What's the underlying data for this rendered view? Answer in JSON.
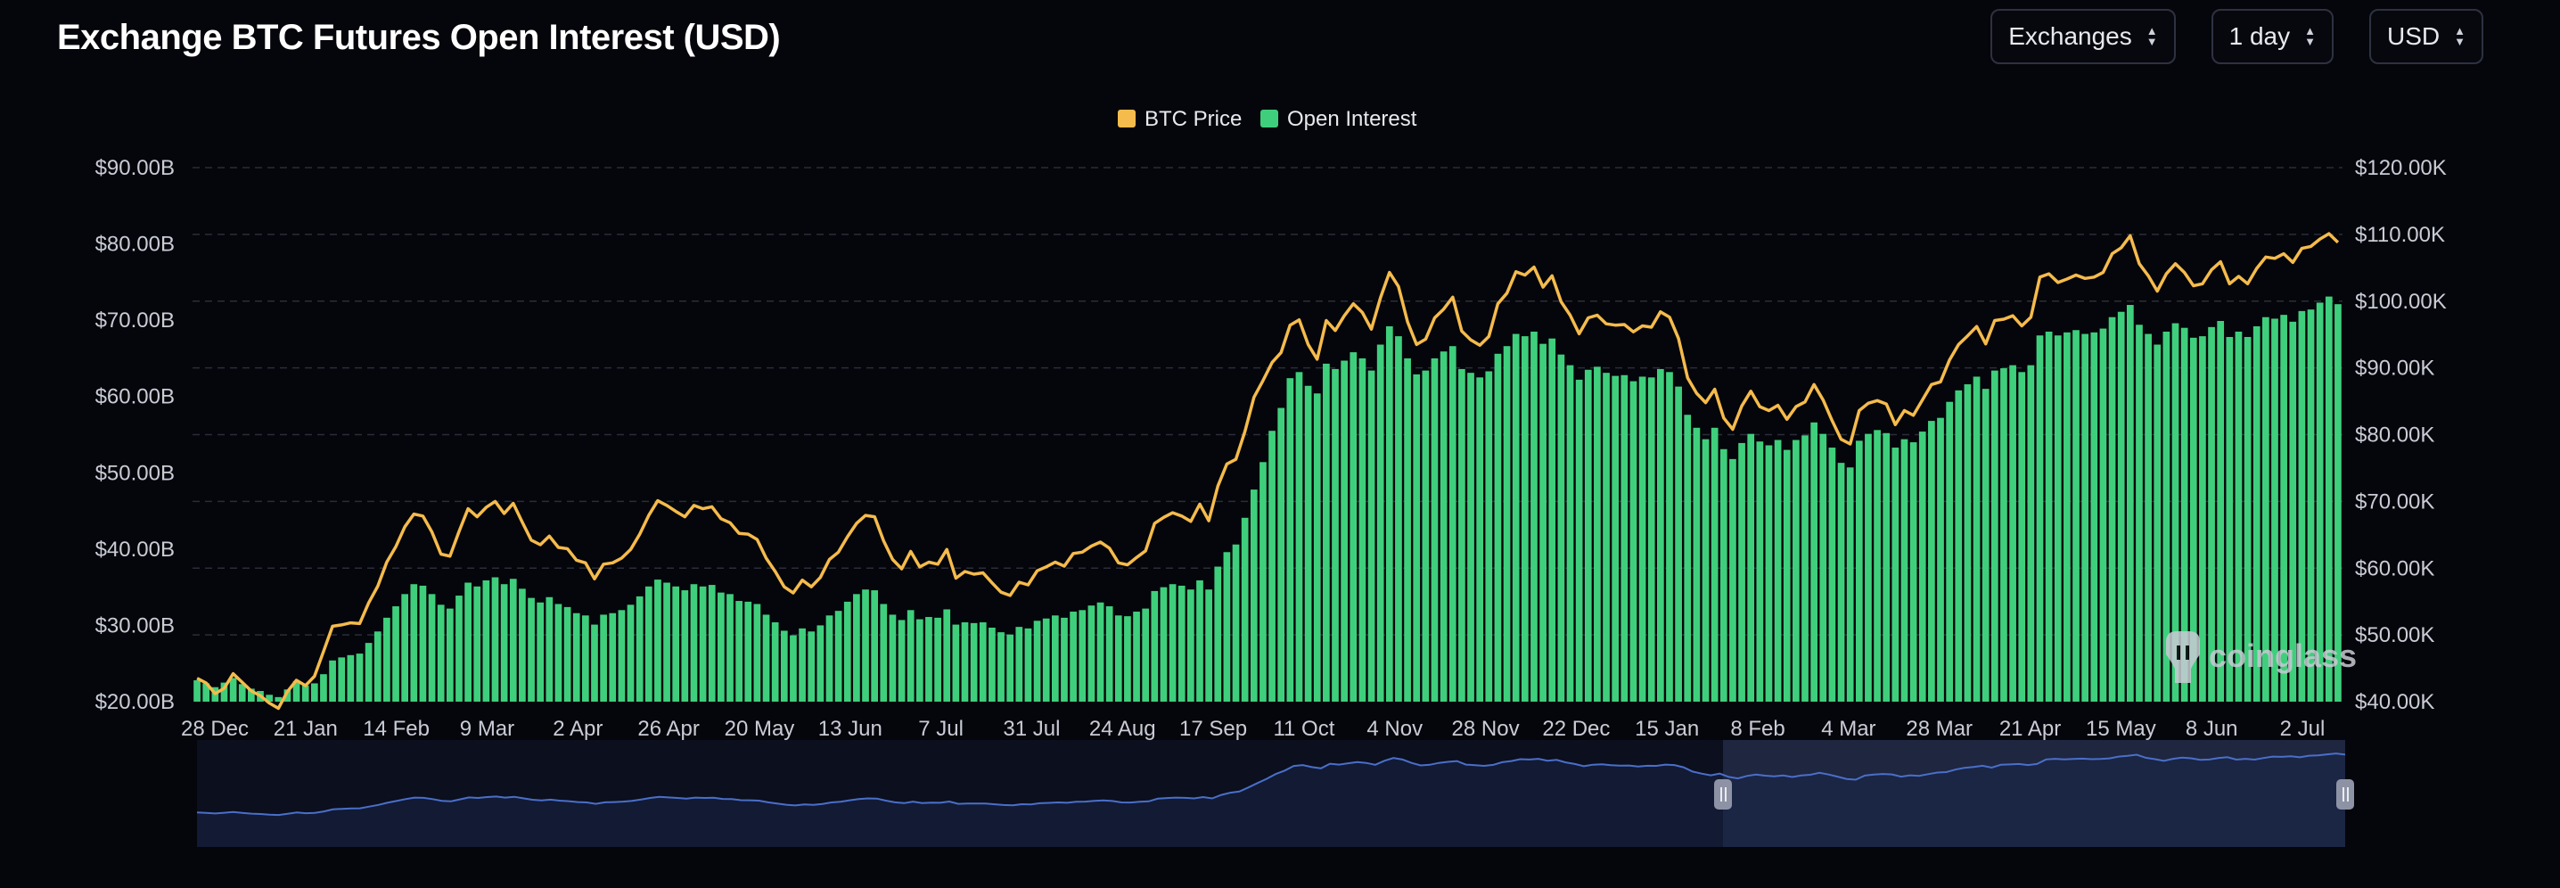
{
  "header": {
    "title": "Exchange BTC Futures Open Interest (USD)",
    "controls": [
      {
        "label": "Exchanges"
      },
      {
        "label": "1 day"
      },
      {
        "label": "USD"
      }
    ]
  },
  "watermark": "coinglass",
  "colors": {
    "price_line": "#f5bb4c",
    "oi_bars": "#3fcf7c",
    "background": "#05060b",
    "navigator_line": "#4a6fc9",
    "navigator_selected": "#1e2640"
  },
  "chart_data": {
    "type": "bar",
    "legend_position": "top-center",
    "grid": true,
    "x_tick_labels": [
      "28 Dec",
      "21 Jan",
      "14 Feb",
      "9 Mar",
      "2 Apr",
      "26 Apr",
      "20 May",
      "13 Jun",
      "7 Jul",
      "31 Jul",
      "24 Aug",
      "17 Sep",
      "11 Oct",
      "4 Nov",
      "28 Nov",
      "22 Dec",
      "15 Jan",
      "8 Feb",
      "4 Mar",
      "28 Mar",
      "21 Apr",
      "15 May",
      "8 Jun",
      "2 Jul"
    ],
    "y_left": {
      "ticks": [
        "$20.00B",
        "$30.00B",
        "$40.00B",
        "$50.00B",
        "$60.00B",
        "$70.00B",
        "$80.00B",
        "$90.00B"
      ],
      "range": [
        20,
        90
      ],
      "unit": "B USD"
    },
    "y_right": {
      "ticks": [
        "$40.00K",
        "$50.00K",
        "$60.00K",
        "$70.00K",
        "$80.00K",
        "$90.00K",
        "$100.00K",
        "$110.00K",
        "$120.00K"
      ],
      "range": [
        40,
        120
      ],
      "unit": "K USD"
    },
    "series": [
      {
        "name": "BTC Price",
        "type": "line",
        "axis": "right",
        "color": "#f5bb4c",
        "values": [
          43.5,
          42.8,
          41.2,
          42.0,
          44.2,
          42.9,
          41.6,
          40.9,
          39.8,
          39.0,
          41.5,
          43.2,
          42.4,
          43.8,
          47.5,
          51.3,
          51.5,
          51.8,
          51.7,
          54.8,
          57.3,
          60.9,
          63.2,
          66.2,
          68.1,
          67.8,
          65.4,
          62.1,
          61.8,
          65.5,
          68.9,
          67.7,
          69.1,
          70.0,
          68.2,
          69.7,
          66.9,
          64.2,
          63.5,
          64.8,
          63.1,
          62.9,
          61.2,
          60.8,
          58.4,
          60.6,
          60.8,
          61.5,
          62.8,
          65.1,
          67.9,
          70.1,
          69.4,
          68.5,
          67.7,
          69.4,
          68.9,
          69.2,
          67.4,
          66.8,
          65.2,
          65.1,
          64.3,
          61.5,
          59.5,
          57.2,
          56.3,
          58.2,
          57.2,
          58.6,
          61.3,
          62.4,
          64.7,
          66.7,
          67.9,
          67.7,
          64.1,
          61.3,
          59.9,
          62.5,
          60.2,
          60.9,
          60.6,
          62.8,
          58.5,
          59.5,
          59.1,
          59.3,
          57.8,
          56.4,
          55.9,
          57.9,
          57.5,
          59.6,
          60.2,
          60.9,
          60.3,
          62.2,
          62.4,
          63.3,
          63.9,
          63.0,
          60.8,
          60.5,
          61.6,
          62.6,
          66.7,
          67.6,
          68.3,
          67.8,
          67.0,
          69.6,
          67.1,
          72.3,
          75.6,
          76.3,
          80.5,
          85.6,
          88.1,
          90.8,
          92.3,
          96.4,
          97.2,
          93.5,
          91.3,
          97.1,
          95.6,
          97.8,
          99.6,
          98.3,
          95.8,
          100.5,
          104.3,
          102.2,
          96.9,
          93.5,
          94.3,
          97.5,
          98.8,
          100.6,
          95.5,
          94.2,
          93.4,
          94.7,
          99.6,
          101.2,
          104.4,
          103.9,
          105.1,
          102.1,
          103.8,
          99.9,
          97.9,
          95.1,
          97.5,
          97.9,
          96.6,
          96.4,
          96.5,
          95.4,
          96.3,
          96.1,
          98.4,
          97.6,
          94.4,
          88.5,
          86.2,
          84.8,
          86.8,
          82.5,
          80.8,
          84.3,
          86.5,
          84.2,
          83.6,
          84.4,
          82.3,
          84.2,
          84.9,
          87.5,
          85.2,
          82.1,
          79.3,
          78.6,
          83.6,
          84.7,
          85.1,
          84.6,
          81.5,
          83.6,
          82.9,
          85.2,
          87.5,
          87.9,
          91.2,
          93.5,
          94.8,
          96.2,
          93.6,
          97.1,
          97.3,
          97.8,
          96.3,
          97.6,
          103.6,
          104.1,
          102.8,
          103.3,
          103.9,
          103.4,
          103.6,
          104.3,
          107.1,
          108.0,
          109.8,
          105.6,
          103.8,
          101.5,
          104.1,
          105.6,
          104.3,
          102.3,
          102.6,
          104.7,
          105.9,
          102.6,
          103.7,
          102.6,
          104.9,
          106.6,
          106.4,
          107.1,
          105.8,
          107.9,
          108.2,
          109.3,
          110.1,
          108.8
        ],
        "value_format": "K USD"
      },
      {
        "name": "Open Interest",
        "type": "bar",
        "axis": "left",
        "color": "#3fcf7c",
        "values": [
          22.8,
          22.4,
          21.9,
          22.5,
          23.1,
          22.3,
          21.7,
          21.4,
          20.9,
          20.6,
          21.6,
          22.7,
          22.1,
          22.4,
          23.6,
          25.4,
          25.8,
          26.1,
          26.3,
          27.7,
          29.2,
          31.0,
          32.5,
          34.1,
          35.4,
          35.2,
          34.1,
          32.7,
          32.2,
          33.9,
          35.6,
          35.1,
          35.9,
          36.3,
          35.4,
          36.1,
          34.8,
          33.6,
          33.0,
          33.7,
          32.8,
          32.4,
          31.6,
          31.3,
          30.1,
          31.4,
          31.6,
          32.0,
          32.7,
          33.8,
          35.1,
          36.0,
          35.6,
          35.1,
          34.6,
          35.4,
          35.1,
          35.3,
          34.3,
          34.1,
          33.2,
          33.1,
          32.8,
          31.4,
          30.4,
          29.3,
          28.7,
          29.6,
          29.2,
          30.0,
          31.3,
          31.9,
          33.1,
          34.1,
          34.7,
          34.6,
          32.8,
          31.4,
          30.7,
          32.0,
          30.8,
          31.1,
          31.0,
          32.1,
          30.1,
          30.4,
          30.3,
          30.4,
          29.7,
          29.1,
          28.8,
          29.8,
          29.6,
          30.6,
          30.9,
          31.3,
          31.0,
          31.8,
          32.0,
          32.6,
          33.0,
          32.5,
          31.3,
          31.2,
          31.8,
          32.2,
          34.5,
          35.0,
          35.4,
          35.2,
          34.7,
          35.9,
          34.7,
          37.7,
          39.6,
          40.6,
          44.1,
          47.8,
          51.4,
          55.5,
          58.5,
          62.4,
          63.2,
          61.4,
          60.4,
          64.3,
          63.6,
          64.7,
          65.8,
          65.0,
          63.4,
          66.8,
          69.2,
          67.9,
          65.0,
          62.9,
          63.4,
          65.0,
          65.9,
          66.6,
          63.6,
          63.1,
          62.5,
          63.3,
          65.6,
          66.6,
          68.2,
          67.9,
          68.5,
          66.9,
          67.6,
          65.5,
          64.1,
          62.2,
          63.5,
          63.9,
          63.1,
          62.7,
          62.8,
          62.0,
          62.6,
          62.5,
          63.6,
          63.2,
          61.3,
          57.6,
          55.9,
          54.4,
          55.9,
          53.1,
          51.8,
          53.9,
          55.1,
          54.1,
          53.6,
          54.3,
          53.0,
          54.3,
          54.9,
          56.6,
          55.1,
          53.3,
          51.3,
          50.7,
          54.2,
          55.1,
          55.6,
          55.2,
          53.3,
          54.4,
          54.0,
          55.4,
          56.8,
          57.2,
          59.3,
          60.8,
          61.6,
          62.6,
          61.0,
          63.4,
          63.7,
          64.1,
          63.2,
          64.1,
          68.0,
          68.5,
          68.0,
          68.4,
          68.7,
          68.2,
          68.4,
          68.9,
          70.4,
          71.1,
          72.0,
          69.4,
          68.2,
          66.8,
          68.5,
          69.6,
          69.0,
          67.7,
          67.9,
          69.1,
          69.9,
          67.8,
          68.5,
          67.8,
          69.2,
          70.4,
          70.2,
          70.7,
          69.8,
          71.2,
          71.4,
          72.3,
          73.1,
          72.1
        ],
        "value_format": "B USD"
      }
    ]
  }
}
